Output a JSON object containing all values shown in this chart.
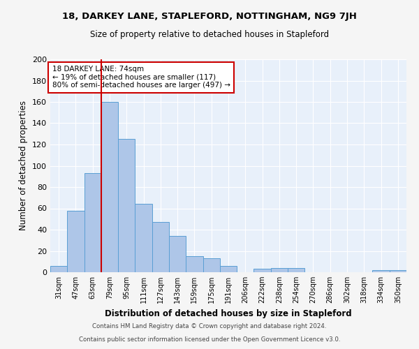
{
  "title": "18, DARKEY LANE, STAPLEFORD, NOTTINGHAM, NG9 7JH",
  "subtitle": "Size of property relative to detached houses in Stapleford",
  "xlabel": "Distribution of detached houses by size in Stapleford",
  "ylabel": "Number of detached properties",
  "categories": [
    "31sqm",
    "47sqm",
    "63sqm",
    "79sqm",
    "95sqm",
    "111sqm",
    "127sqm",
    "143sqm",
    "159sqm",
    "175sqm",
    "191sqm",
    "206sqm",
    "222sqm",
    "238sqm",
    "254sqm",
    "270sqm",
    "286sqm",
    "302sqm",
    "318sqm",
    "334sqm",
    "350sqm"
  ],
  "values": [
    6,
    58,
    93,
    160,
    125,
    64,
    47,
    34,
    15,
    13,
    6,
    0,
    3,
    4,
    4,
    0,
    0,
    0,
    0,
    2,
    2
  ],
  "bar_color": "#aec6e8",
  "bar_edge_color": "#5a9fd4",
  "redline_index": 3,
  "annotation_title": "18 DARKEY LANE: 74sqm",
  "annotation_line1": "← 19% of detached houses are smaller (117)",
  "annotation_line2": "80% of semi-detached houses are larger (497) →",
  "annotation_box_color": "#ffffff",
  "annotation_box_edge": "#cc0000",
  "redline_color": "#cc0000",
  "ylim": [
    0,
    200
  ],
  "yticks": [
    0,
    20,
    40,
    60,
    80,
    100,
    120,
    140,
    160,
    180,
    200
  ],
  "footer1": "Contains HM Land Registry data © Crown copyright and database right 2024.",
  "footer2": "Contains public sector information licensed under the Open Government Licence v3.0.",
  "background_color": "#e8f0fa",
  "grid_color": "#ffffff",
  "fig_bg": "#f5f5f5"
}
